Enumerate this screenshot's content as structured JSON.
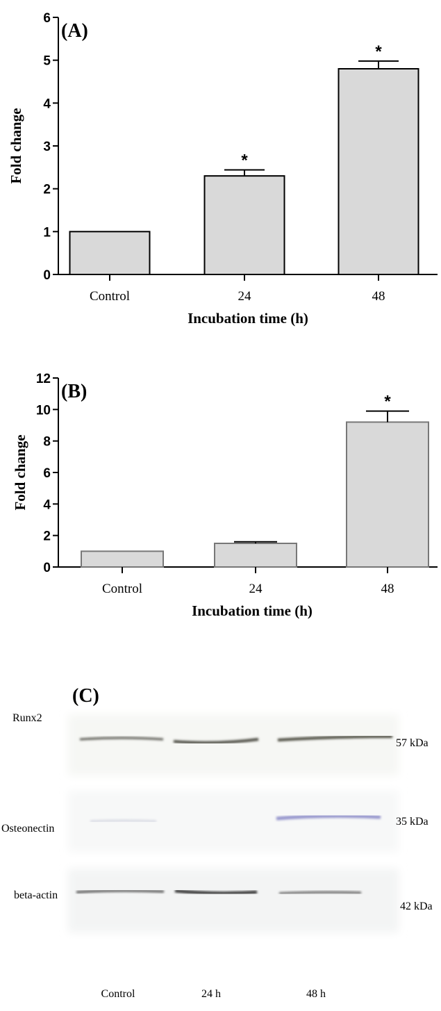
{
  "colors": {
    "bar_fill": "#d9d9d9",
    "axis": "#000000",
    "band": "#3d3d3d"
  },
  "chart_data": [
    {
      "type": "bar",
      "panel_label": "(A)",
      "categories": [
        "Control",
        "24",
        "48"
      ],
      "values": [
        1.0,
        2.3,
        4.8
      ],
      "errors": [
        0,
        0.14,
        0.18
      ],
      "significance": [
        "",
        "*",
        "*"
      ],
      "xlabel": "Incubation time (h)",
      "ylabel": "Fold change",
      "ylim": [
        0,
        6
      ],
      "yticks": [
        "0",
        "1",
        "2",
        "3",
        "4",
        "5",
        "6"
      ],
      "grid": false
    },
    {
      "type": "bar",
      "panel_label": "(B)",
      "categories": [
        "Control",
        "24",
        "48"
      ],
      "values": [
        1.0,
        1.5,
        9.2
      ],
      "errors": [
        0,
        0.1,
        0.7
      ],
      "significance": [
        "",
        "",
        "*"
      ],
      "xlabel": "Incubation time (h)",
      "ylabel": "Fold change",
      "ylim": [
        0,
        12
      ],
      "yticks": [
        "0",
        "2",
        "4",
        "6",
        "8",
        "10",
        "12"
      ],
      "grid": false
    }
  ],
  "blot": {
    "panel_label": "(C)",
    "proteins": [
      {
        "name": "Runx2",
        "kda": "57 kDa"
      },
      {
        "name": "Osteonectin",
        "kda": "35 kDa"
      },
      {
        "name": "beta-actin",
        "kda": "42 kDa"
      }
    ],
    "lanes": [
      "Control",
      "24 h",
      "48 h"
    ]
  }
}
